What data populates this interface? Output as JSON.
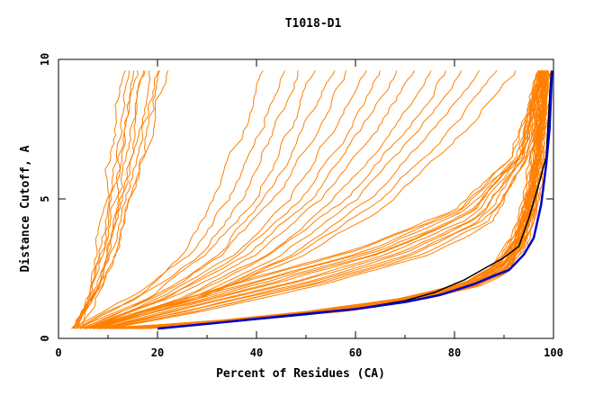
{
  "chart_data": {
    "type": "line",
    "title": "T1018-D1",
    "xlabel": "Percent of Residues (CA)",
    "ylabel": "Distance Cutoff, A",
    "xlim": [
      0,
      100
    ],
    "ylim": [
      0,
      10
    ],
    "x_ticks": [
      0,
      20,
      40,
      60,
      80,
      100
    ],
    "y_ticks": [
      0,
      5,
      10
    ],
    "x_tick_labels": [
      "0",
      "20",
      "40",
      "60",
      "80",
      "100"
    ],
    "y_tick_labels": [
      "0",
      "5",
      "10"
    ],
    "grid": false,
    "legend": "none",
    "colors": {
      "models": "#ff8000",
      "highlight_black": "#000000",
      "highlight_blue": "#0000cc"
    },
    "highlight_series": [
      {
        "name": "highlight-black",
        "color": "#000000",
        "points": [
          [
            20,
            0.35
          ],
          [
            30,
            0.52
          ],
          [
            40,
            0.68
          ],
          [
            50,
            0.85
          ],
          [
            60,
            1.05
          ],
          [
            70,
            1.35
          ],
          [
            76,
            1.65
          ],
          [
            82,
            2.1
          ],
          [
            86,
            2.5
          ],
          [
            90,
            2.9
          ],
          [
            93,
            3.3
          ],
          [
            95,
            4.3
          ],
          [
            97,
            5.5
          ],
          [
            98.5,
            6.5
          ],
          [
            99.5,
            9.5
          ]
        ]
      },
      {
        "name": "highlight-blue",
        "color": "#0000cc",
        "points": [
          [
            20,
            0.35
          ],
          [
            30,
            0.52
          ],
          [
            40,
            0.7
          ],
          [
            50,
            0.88
          ],
          [
            60,
            1.05
          ],
          [
            70,
            1.3
          ],
          [
            77,
            1.55
          ],
          [
            84,
            1.95
          ],
          [
            88,
            2.25
          ],
          [
            91,
            2.45
          ],
          [
            94,
            3.0
          ],
          [
            96,
            3.6
          ],
          [
            97.5,
            4.8
          ],
          [
            98.5,
            6.2
          ],
          [
            99.2,
            7.5
          ],
          [
            99.7,
            9.6
          ]
        ]
      }
    ],
    "model_bundles": [
      {
        "name": "steep-left",
        "count": 10,
        "y_start": 0.35,
        "y_end": 9.6,
        "points": [
          [
            3,
            0.35
          ],
          [
            6,
            1.5
          ],
          [
            9,
            4
          ],
          [
            11,
            7
          ],
          [
            13,
            9.6
          ]
        ],
        "points_alt": [
          [
            4,
            0.35
          ],
          [
            9,
            2
          ],
          [
            14,
            4.5
          ],
          [
            18,
            7
          ],
          [
            22,
            9.6
          ]
        ]
      },
      {
        "name": "diagonal-mid",
        "count": 16,
        "y_start": 0.35,
        "y_end": 9.6,
        "points": [
          [
            3,
            0.35
          ],
          [
            15,
            1.5
          ],
          [
            25,
            3
          ],
          [
            32,
            5
          ],
          [
            38,
            7.5
          ],
          [
            42,
            9.6
          ]
        ],
        "points_alt": [
          [
            8,
            0.35
          ],
          [
            30,
            1.5
          ],
          [
            50,
            3
          ],
          [
            68,
            5
          ],
          [
            82,
            7.5
          ],
          [
            92,
            9.6
          ]
        ]
      },
      {
        "name": "shallow-upper",
        "count": 14,
        "y_start": 0.35,
        "y_end": 9.6,
        "points": [
          [
            5,
            0.35
          ],
          [
            20,
            1.2
          ],
          [
            40,
            2.2
          ],
          [
            60,
            3.2
          ],
          [
            80,
            4.6
          ],
          [
            92,
            6.5
          ],
          [
            97,
            9.6
          ]
        ],
        "points_alt": [
          [
            10,
            0.35
          ],
          [
            30,
            1
          ],
          [
            55,
            2
          ],
          [
            75,
            3
          ],
          [
            88,
            4.2
          ],
          [
            95,
            6.5
          ],
          [
            98,
            9.6
          ]
        ]
      },
      {
        "name": "dense-band",
        "count": 34,
        "y_start": 0.35,
        "y_end": 9.6,
        "points": [
          [
            8,
            0.35
          ],
          [
            30,
            0.6
          ],
          [
            50,
            0.95
          ],
          [
            70,
            1.45
          ],
          [
            82,
            2.0
          ],
          [
            88,
            2.6
          ],
          [
            92,
            3.6
          ],
          [
            95,
            5.5
          ],
          [
            96.5,
            7.5
          ],
          [
            97.5,
            9.6
          ]
        ],
        "points_alt": [
          [
            18,
            0.35
          ],
          [
            40,
            0.7
          ],
          [
            60,
            1.0
          ],
          [
            75,
            1.45
          ],
          [
            85,
            1.9
          ],
          [
            91,
            2.4
          ],
          [
            94,
            3.2
          ],
          [
            96,
            4.5
          ],
          [
            97.5,
            6.5
          ],
          [
            99,
            9.6
          ]
        ]
      }
    ]
  }
}
